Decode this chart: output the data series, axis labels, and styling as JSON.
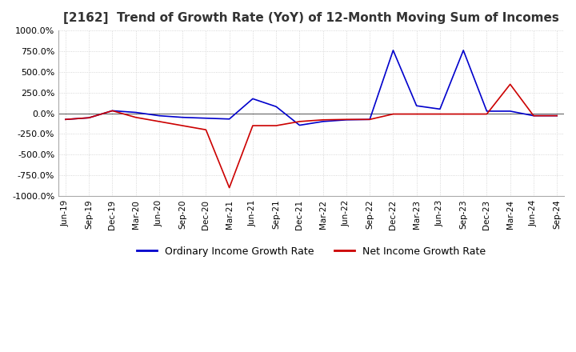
{
  "title": "[2162]  Trend of Growth Rate (YoY) of 12-Month Moving Sum of Incomes",
  "title_fontsize": 11,
  "ylim": [
    -1000,
    1000
  ],
  "yticks": [
    -1000,
    -750,
    -500,
    -250,
    0,
    250,
    500,
    750,
    1000
  ],
  "background_color": "#ffffff",
  "plot_bg_color": "#ffffff",
  "grid_color": "#cccccc",
  "ordinary_color": "#0000cc",
  "net_color": "#cc0000",
  "legend_labels": [
    "Ordinary Income Growth Rate",
    "Net Income Growth Rate"
  ],
  "dates": [
    "Jun-19",
    "Sep-19",
    "Dec-19",
    "Mar-20",
    "Jun-20",
    "Sep-20",
    "Dec-20",
    "Mar-21",
    "Jun-21",
    "Sep-21",
    "Dec-21",
    "Mar-22",
    "Jun-22",
    "Sep-22",
    "Dec-22",
    "Mar-23",
    "Jun-23",
    "Sep-23",
    "Dec-23",
    "Mar-24",
    "Jun-24",
    "Sep-24"
  ],
  "ordinary_values": [
    -75,
    -55,
    30,
    10,
    -30,
    -50,
    -60,
    -70,
    175,
    80,
    -145,
    -100,
    -80,
    -75,
    760,
    90,
    50,
    760,
    25,
    25,
    -30,
    -30
  ],
  "net_values": [
    -75,
    -55,
    30,
    -50,
    -100,
    -150,
    -200,
    -900,
    -150,
    -150,
    -100,
    -80,
    -75,
    -75,
    -10,
    -10,
    -10,
    -10,
    -10,
    350,
    -30,
    -30
  ]
}
